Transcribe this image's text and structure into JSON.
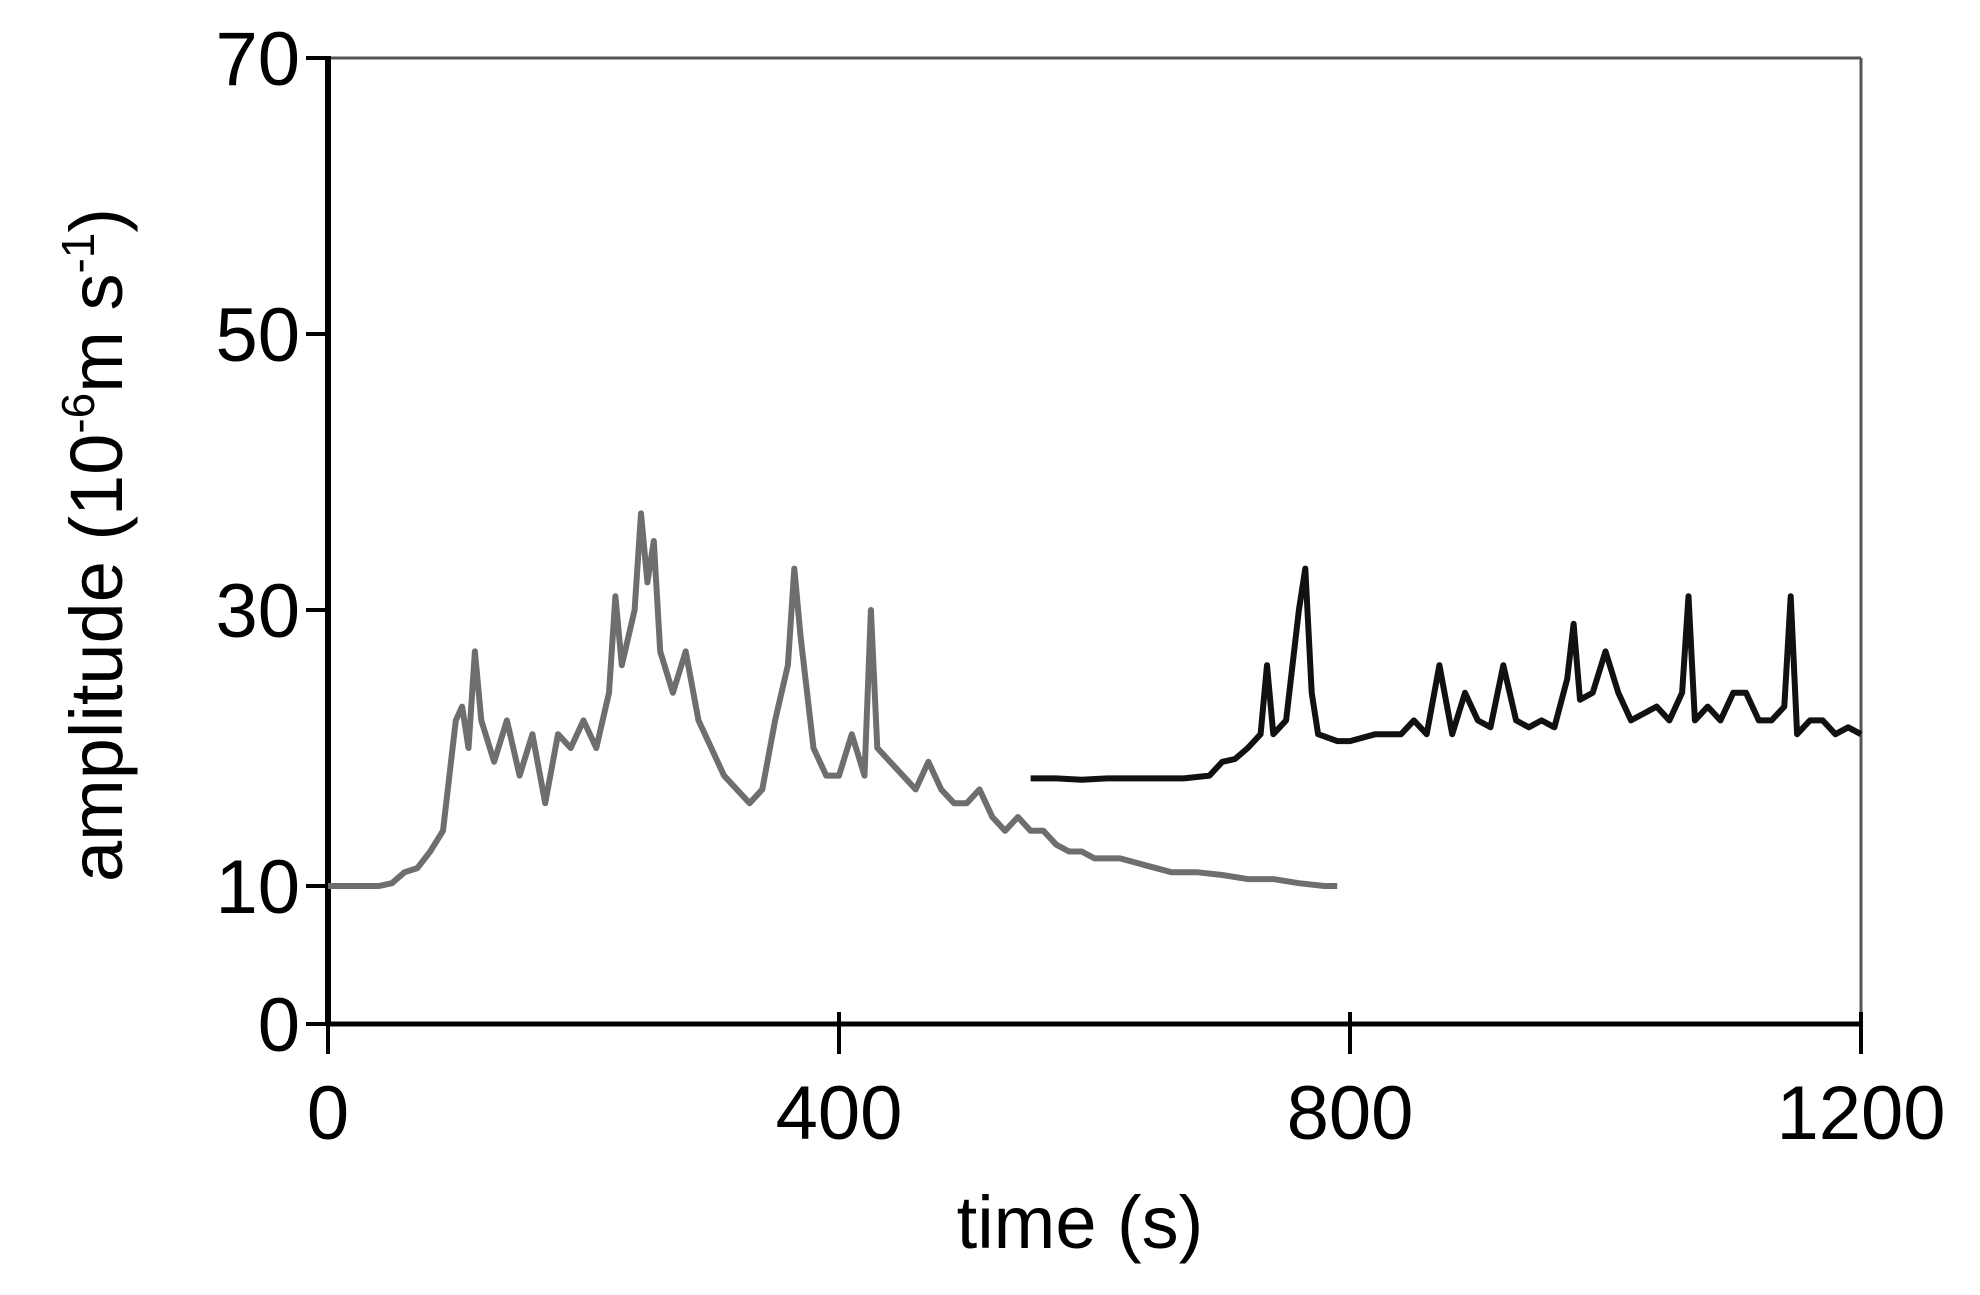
{
  "chart_data": {
    "type": "line",
    "x_label": "time (s)",
    "y_label": [
      "amplitude (10",
      "-6",
      "m s",
      "-1",
      ")"
    ],
    "xlim": [
      0,
      1200
    ],
    "xticks": [
      0,
      400,
      800,
      1200
    ],
    "ylim": [
      0,
      70
    ],
    "yticks": [
      0,
      10,
      30,
      50,
      70
    ],
    "series": [
      {
        "color": "#6e6e6e",
        "x": [
          0,
          10,
          20,
          30,
          40,
          50,
          60,
          70,
          80,
          90,
          100,
          105,
          110,
          115,
          120,
          130,
          140,
          150,
          160,
          170,
          180,
          190,
          200,
          210,
          220,
          225,
          230,
          240,
          245,
          250,
          255,
          260,
          270,
          280,
          290,
          300,
          310,
          320,
          330,
          340,
          350,
          360,
          365,
          370,
          380,
          390,
          400,
          410,
          420,
          425,
          430,
          440,
          450,
          460,
          470,
          480,
          490,
          500,
          510,
          520,
          530,
          540,
          550,
          560,
          570,
          580,
          590,
          600,
          620,
          640,
          660,
          680,
          700,
          720,
          740,
          760,
          780,
          790
        ],
        "values": [
          10,
          10,
          10,
          10,
          10,
          10.2,
          11,
          11.3,
          12.5,
          14,
          22,
          23,
          20,
          27,
          22,
          19,
          22,
          18,
          21,
          16,
          21,
          20,
          22,
          20,
          24,
          31,
          26,
          30,
          37,
          32,
          35,
          27,
          24,
          27,
          22,
          20,
          18,
          17,
          16,
          17,
          22,
          26,
          33,
          28,
          20,
          18,
          18,
          21,
          18,
          30,
          20,
          19,
          18,
          17,
          19,
          17,
          16,
          16,
          17,
          15,
          14,
          15,
          14,
          14,
          13,
          12.5,
          12.5,
          12,
          12,
          11.5,
          11,
          11,
          10.8,
          10.5,
          10.5,
          10.2,
          10,
          10
        ]
      },
      {
        "color": "#111111",
        "x": [
          550,
          570,
          590,
          610,
          630,
          650,
          670,
          690,
          700,
          710,
          720,
          730,
          735,
          740,
          750,
          760,
          765,
          770,
          775,
          790,
          800,
          820,
          840,
          850,
          860,
          870,
          880,
          890,
          900,
          910,
          920,
          930,
          940,
          950,
          960,
          970,
          975,
          980,
          990,
          1000,
          1010,
          1020,
          1030,
          1040,
          1050,
          1060,
          1065,
          1070,
          1080,
          1090,
          1100,
          1110,
          1120,
          1130,
          1140,
          1145,
          1150,
          1160,
          1170,
          1180,
          1190,
          1200
        ],
        "values": [
          17.8,
          17.8,
          17.7,
          17.8,
          17.8,
          17.8,
          17.8,
          18,
          19,
          19.2,
          20,
          21,
          26,
          21,
          22,
          30,
          33,
          24,
          21,
          20.5,
          20.5,
          21,
          21,
          22,
          21,
          26,
          21,
          24,
          22,
          21.5,
          26,
          22,
          21.5,
          22,
          21.5,
          25,
          29,
          23.5,
          24,
          27,
          24,
          22,
          22.5,
          23,
          22,
          24,
          31,
          22,
          23,
          22,
          24,
          24,
          22,
          22,
          23,
          31,
          21,
          22,
          22,
          21,
          21.5,
          21
        ]
      }
    ]
  }
}
